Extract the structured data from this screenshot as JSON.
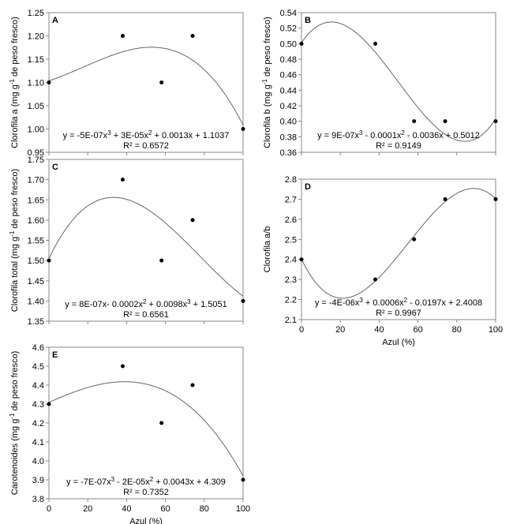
{
  "chart_data": [
    {
      "type": "scatter",
      "panel": "A",
      "ylabel": [
        "Clorofila a (mg g",
        "-1",
        " de peso fresco)"
      ],
      "xlabel": "",
      "ylim": [
        0.95,
        1.25
      ],
      "ystep": 0.05,
      "ydec": 2,
      "xlim": [
        0,
        100
      ],
      "xticks_labeled": false,
      "x": [
        0,
        38,
        58,
        74,
        100
      ],
      "y": [
        1.1,
        1.2,
        1.1,
        1.2,
        1.0
      ],
      "equation": [
        "y = -5E-07x",
        "3",
        " + 3E-05x",
        "2",
        " + 0.0013x + 1.1037"
      ],
      "r2": "R² = 0.6572"
    },
    {
      "type": "scatter",
      "panel": "B",
      "ylabel": [
        "Clorofila b (mg g",
        "-1",
        " de peso fresco)"
      ],
      "xlabel": "",
      "ylim": [
        0.36,
        0.54
      ],
      "ystep": 0.02,
      "ydec": 2,
      "xlim": [
        0,
        100
      ],
      "xticks_labeled": false,
      "x": [
        0,
        38,
        58,
        74,
        100
      ],
      "y": [
        0.5,
        0.5,
        0.4,
        0.4,
        0.4
      ],
      "equation": [
        "y = 9E-07x",
        "3",
        " - 0.0001x",
        "2",
        " - 0.0036x + 0.5012"
      ],
      "r2": "R² = 0.9149"
    },
    {
      "type": "scatter",
      "panel": "C",
      "ylabel": [
        "Clorofila total (mg g",
        "-1",
        " de peso fresco)"
      ],
      "xlabel": "",
      "ylim": [
        1.35,
        1.75
      ],
      "ystep": 0.05,
      "ydec": 2,
      "xlim": [
        0,
        100
      ],
      "xticks_labeled": false,
      "x": [
        0,
        38,
        58,
        74,
        100
      ],
      "y": [
        1.5,
        1.7,
        1.5,
        1.6,
        1.4
      ],
      "equation": [
        "y = 8E-07x- 0.0002x",
        "2",
        " + 0.0098x",
        "3",
        " + 1.5051"
      ],
      "r2": "R² = 0.6561"
    },
    {
      "type": "scatter",
      "panel": "D",
      "ylabel": [
        "Clorofila a/b"
      ],
      "xlabel": "Azul (%)",
      "ylim": [
        2.1,
        2.8
      ],
      "ystep": 0.1,
      "ydec": 1,
      "xlim": [
        0,
        100
      ],
      "xticks_labeled": true,
      "x": [
        0,
        38,
        58,
        74,
        100
      ],
      "y": [
        2.4,
        2.3,
        2.5,
        2.7,
        2.7
      ],
      "equation": [
        "y = -4E-06x",
        "3",
        " + 0.0006x",
        "2",
        " - 0.0197x + 2.4008"
      ],
      "r2": "R² = 0.9967"
    },
    {
      "type": "scatter",
      "panel": "E",
      "ylabel": [
        "Carotenoides (mg g",
        "-1",
        " de peso fresco)"
      ],
      "xlabel": "Azul (%)",
      "ylim": [
        3.8,
        4.6
      ],
      "ystep": 0.1,
      "ydec": 1,
      "xlim": [
        0,
        100
      ],
      "xticks_labeled": true,
      "x": [
        0,
        38,
        58,
        74,
        100
      ],
      "y": [
        4.3,
        4.5,
        4.2,
        4.4,
        3.9
      ],
      "equation": [
        "y = -7E-07x",
        "3",
        " - 2E-05x",
        "2",
        " + 0.0043x + 4.309"
      ],
      "r2": "R² = 0.7352"
    }
  ]
}
